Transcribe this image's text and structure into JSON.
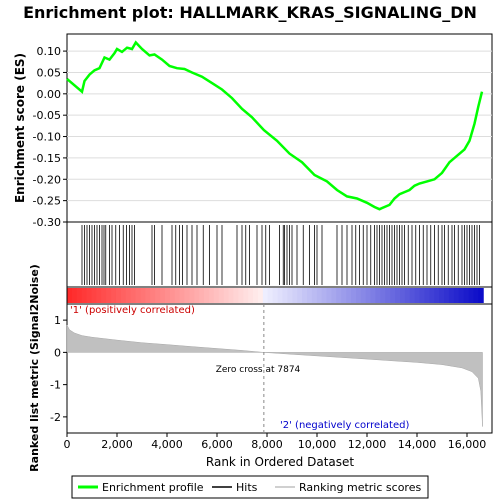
{
  "chart_data": {
    "type": "line",
    "title": "Enrichment plot: HALLMARK_KRAS_SIGNALING_DN",
    "es_panel": {
      "ylabel": "Enrichment score (ES)",
      "ylim": [
        -0.3,
        0.14
      ],
      "yticks": [
        0.1,
        0.05,
        0.0,
        -0.05,
        -0.1,
        -0.15,
        -0.2,
        -0.25,
        -0.3
      ],
      "ytick_labels": [
        "0.10",
        "0.05",
        "0.00",
        "-0.05",
        "-0.10",
        "-0.15",
        "-0.20",
        "-0.25",
        "-0.30"
      ],
      "series": [
        {
          "name": "Enrichment profile",
          "color": "#00ff00",
          "points": [
            [
              0,
              0.035
            ],
            [
              600,
              0.005
            ],
            [
              700,
              0.03
            ],
            [
              900,
              0.045
            ],
            [
              1100,
              0.055
            ],
            [
              1300,
              0.06
            ],
            [
              1500,
              0.085
            ],
            [
              1700,
              0.08
            ],
            [
              1900,
              0.095
            ],
            [
              2000,
              0.105
            ],
            [
              2200,
              0.098
            ],
            [
              2400,
              0.108
            ],
            [
              2600,
              0.105
            ],
            [
              2750,
              0.12
            ],
            [
              3000,
              0.105
            ],
            [
              3300,
              0.09
            ],
            [
              3500,
              0.092
            ],
            [
              3800,
              0.08
            ],
            [
              4100,
              0.065
            ],
            [
              4400,
              0.06
            ],
            [
              4700,
              0.058
            ],
            [
              5000,
              0.05
            ],
            [
              5400,
              0.04
            ],
            [
              5800,
              0.025
            ],
            [
              6200,
              0.01
            ],
            [
              6600,
              -0.01
            ],
            [
              7000,
              -0.035
            ],
            [
              7400,
              -0.055
            ],
            [
              7874,
              -0.085
            ],
            [
              8400,
              -0.11
            ],
            [
              8900,
              -0.14
            ],
            [
              9400,
              -0.16
            ],
            [
              9900,
              -0.19
            ],
            [
              10400,
              -0.205
            ],
            [
              10800,
              -0.225
            ],
            [
              11200,
              -0.24
            ],
            [
              11600,
              -0.245
            ],
            [
              12000,
              -0.255
            ],
            [
              12300,
              -0.265
            ],
            [
              12500,
              -0.27
            ],
            [
              12700,
              -0.265
            ],
            [
              12900,
              -0.26
            ],
            [
              13100,
              -0.245
            ],
            [
              13300,
              -0.235
            ],
            [
              13500,
              -0.23
            ],
            [
              13700,
              -0.225
            ],
            [
              13900,
              -0.215
            ],
            [
              14100,
              -0.21
            ],
            [
              14400,
              -0.205
            ],
            [
              14700,
              -0.2
            ],
            [
              15000,
              -0.185
            ],
            [
              15300,
              -0.16
            ],
            [
              15600,
              -0.145
            ],
            [
              15900,
              -0.13
            ],
            [
              16100,
              -0.11
            ],
            [
              16300,
              -0.07
            ],
            [
              16450,
              -0.03
            ],
            [
              16600,
              0.005
            ]
          ]
        }
      ]
    },
    "hits": {
      "label": "Hits",
      "positions": [
        600,
        700,
        800,
        900,
        1000,
        1100,
        1200,
        1300,
        1400,
        1480,
        1550,
        1700,
        1800,
        1950,
        2100,
        2250,
        2380,
        2500,
        2600,
        2700,
        3400,
        3500,
        3800,
        4200,
        4350,
        4500,
        4620,
        4800,
        5000,
        5200,
        5450,
        5700,
        6000,
        6200,
        6800,
        7000,
        7150,
        7300,
        7600,
        7800,
        7950,
        8100,
        8500,
        8650,
        8700,
        8800,
        8900,
        9000,
        9200,
        9450,
        9700,
        9900,
        10000,
        10200,
        10800,
        11000,
        11200,
        11400,
        11550,
        11700,
        11850,
        12000,
        12150,
        12300,
        12400,
        12500,
        12600,
        12700,
        12800,
        12900,
        13000,
        13100,
        13200,
        13300,
        13400,
        13500,
        13650,
        13800,
        13950,
        14100,
        14250,
        14400,
        14550,
        14700,
        14850,
        15000,
        15100,
        15250,
        15400,
        15500,
        15650,
        15800,
        15900,
        16000,
        16100,
        16200,
        16300,
        16400,
        16500
      ]
    },
    "metric_panel": {
      "ylabel": "Ranked list metric (Signal2Noise)",
      "ylim": [
        -2.5,
        1.5
      ],
      "yticks": [
        1,
        0,
        -1,
        -2
      ],
      "ytick_labels": [
        "1",
        "0",
        "-1",
        "-2"
      ],
      "metric_curve": [
        [
          0,
          0.85
        ],
        [
          100,
          0.7
        ],
        [
          300,
          0.6
        ],
        [
          600,
          0.52
        ],
        [
          1000,
          0.47
        ],
        [
          2000,
          0.38
        ],
        [
          3000,
          0.3
        ],
        [
          4000,
          0.24
        ],
        [
          5000,
          0.18
        ],
        [
          6000,
          0.12
        ],
        [
          7000,
          0.06
        ],
        [
          7874,
          0.0
        ],
        [
          9000,
          -0.06
        ],
        [
          10000,
          -0.11
        ],
        [
          11000,
          -0.16
        ],
        [
          12000,
          -0.21
        ],
        [
          13000,
          -0.26
        ],
        [
          14000,
          -0.31
        ],
        [
          15000,
          -0.38
        ],
        [
          15800,
          -0.48
        ],
        [
          16200,
          -0.6
        ],
        [
          16450,
          -0.8
        ],
        [
          16550,
          -1.2
        ],
        [
          16620,
          -2.3
        ]
      ],
      "zero_cross_label": "Zero cross at 7874",
      "zero_cross": 7874,
      "positive_label": "'1' (positively correlated)",
      "negative_label": "'2' (negatively correlated)"
    },
    "xaxis": {
      "label": "Rank in Ordered Dataset",
      "xlim": [
        0,
        17000
      ],
      "ticks": [
        0,
        2000,
        4000,
        6000,
        8000,
        10000,
        12000,
        14000,
        16000
      ],
      "tick_labels": [
        "0",
        "2,000",
        "4,000",
        "6,000",
        "8,000",
        "10,000",
        "12,000",
        "14,000",
        "16,000"
      ],
      "n_genes": 16650
    },
    "legend": {
      "placement": "bottom",
      "entries": [
        {
          "label": "Enrichment profile",
          "color": "#00ff00"
        },
        {
          "label": "Hits",
          "color": "#000000"
        },
        {
          "label": "Ranking metric scores",
          "color": "#c0c0c0"
        }
      ]
    }
  }
}
